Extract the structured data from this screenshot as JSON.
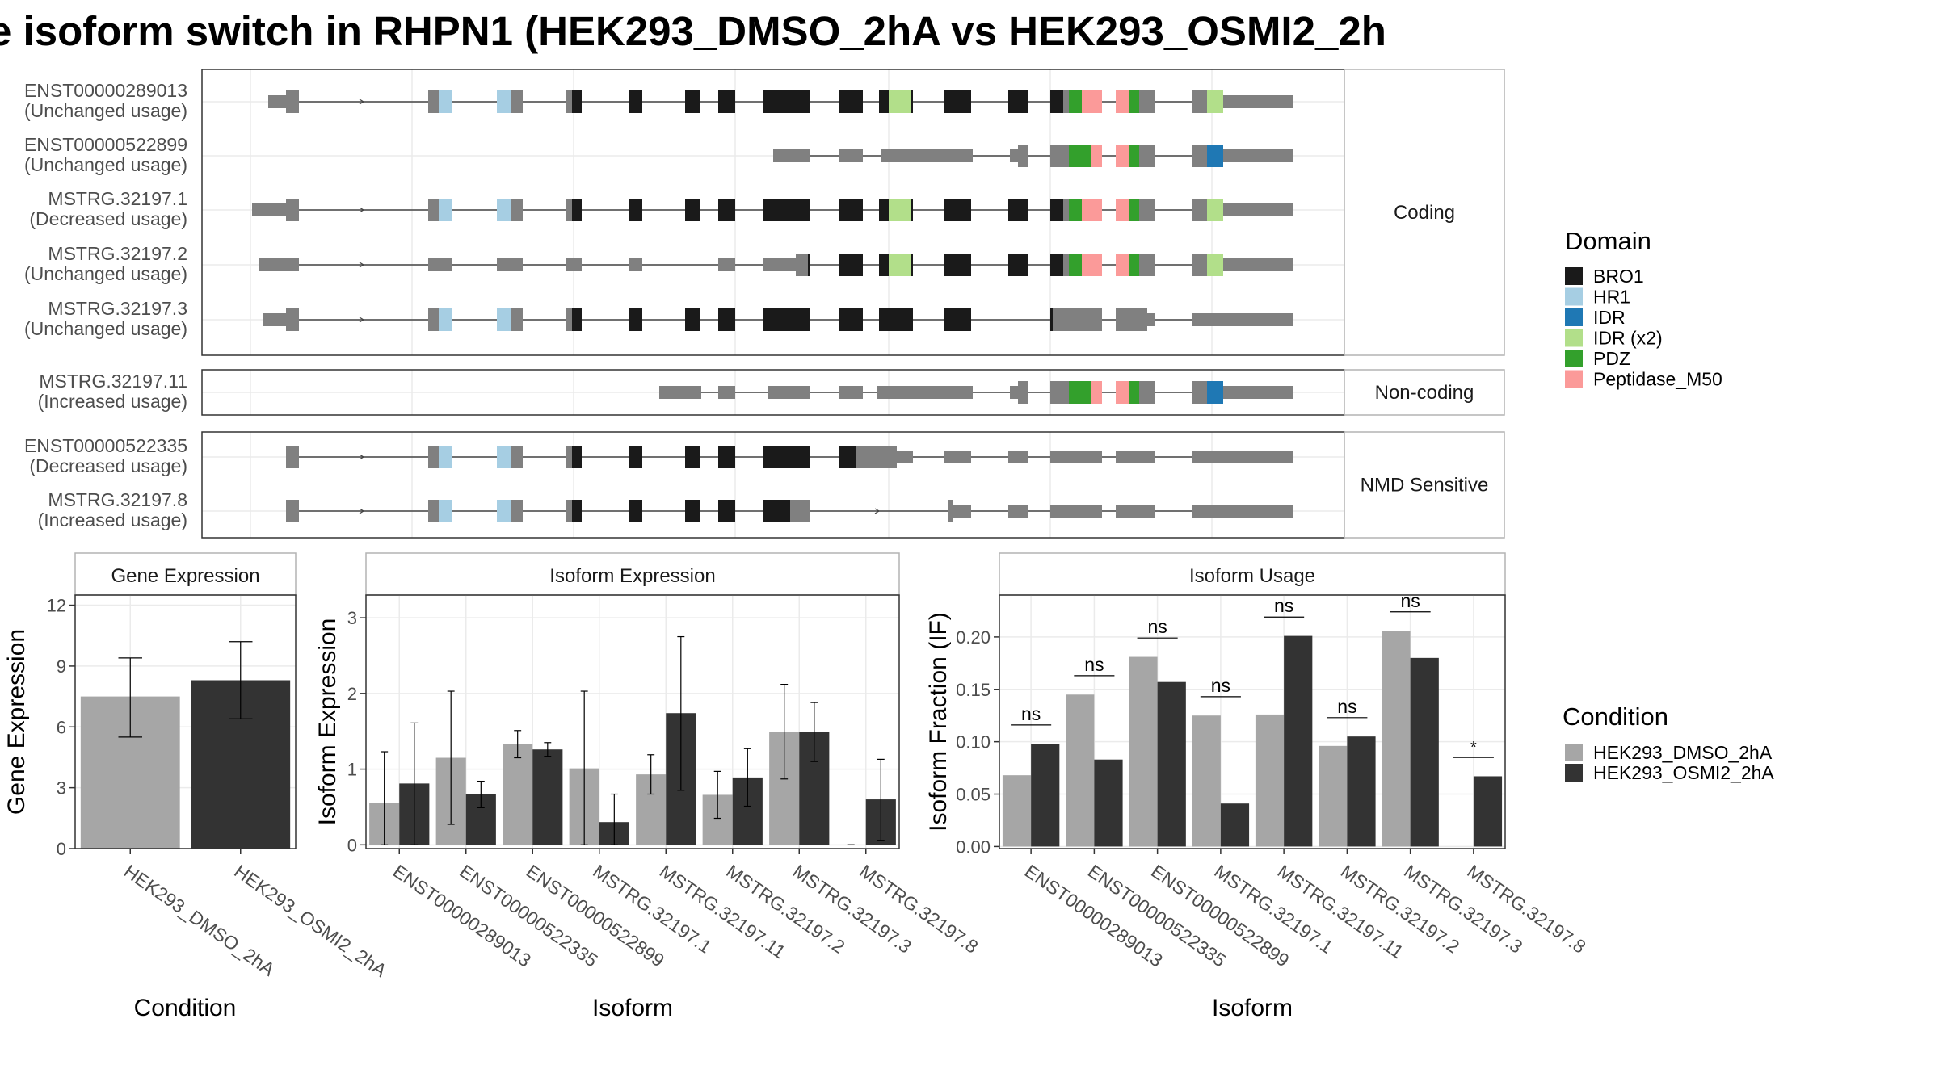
{
  "title": "e isoform switch in RHPN1 (HEK293_DMSO_2hA vs HEK293_OSMI2_2h",
  "colors": {
    "BRO1": "#1a1a1a",
    "HR1": "#a6cee3",
    "IDR": "#1f78b4",
    "IDR (x2)": "#b2df8a",
    "PDZ": "#33a02c",
    "Peptidase_M50": "#fb9a99",
    "exon": "#808080",
    "intron": "#444444",
    "cond1": "#a6a6a6",
    "cond2": "#333333",
    "grid": "#ebebeb",
    "panel_border": "#333333",
    "strip_border": "#b3b3b3"
  },
  "structure": {
    "groups": [
      {
        "label": "Coding",
        "isoforms": [
          {
            "id": "ENST00000289013",
            "usage": "(Unchanged usage)"
          },
          {
            "id": "ENST00000522899",
            "usage": "(Unchanged usage)"
          },
          {
            "id": "MSTRG.32197.1",
            "usage": "(Decreased usage)"
          },
          {
            "id": "MSTRG.32197.2",
            "usage": "(Unchanged usage)"
          },
          {
            "id": "MSTRG.32197.3",
            "usage": "(Unchanged usage)"
          }
        ]
      },
      {
        "label": "Non-coding",
        "isoforms": [
          {
            "id": "MSTRG.32197.11",
            "usage": "(Increased usage)"
          }
        ]
      },
      {
        "label": "NMD Sensitive",
        "isoforms": [
          {
            "id": "ENST00000522335",
            "usage": "(Decreased usage)"
          },
          {
            "id": "MSTRG.32197.8",
            "usage": "(Increased usage)"
          }
        ]
      }
    ]
  },
  "legend_domain": {
    "title": "Domain",
    "items": [
      "BRO1",
      "HR1",
      "IDR",
      "IDR (x2)",
      "PDZ",
      "Peptidase_M50"
    ]
  },
  "legend_condition": {
    "title": "Condition",
    "items": [
      "HEK293_DMSO_2hA",
      "HEK293_OSMI2_2hA"
    ]
  },
  "chart_data": [
    {
      "type": "bar",
      "title": "Gene Expression",
      "xlabel": "Condition",
      "ylabel": "Gene Expression",
      "categories": [
        "HEK293_DMSO_2hA",
        "HEK293_OSMI2_2hA"
      ],
      "values": [
        7.5,
        8.3
      ],
      "errors": [
        [
          5.5,
          9.4
        ],
        [
          6.4,
          10.2
        ]
      ],
      "ylim": [
        0,
        12.5
      ],
      "yticks": [
        "0",
        "3",
        "6",
        "9",
        "12"
      ]
    },
    {
      "type": "bar",
      "title": "Isoform Expression",
      "xlabel": "Isoform",
      "ylabel": "Isoform Expression",
      "categories": [
        "ENST00000289013",
        "ENST00000522335",
        "ENST00000522899",
        "MSTRG.32197.1",
        "MSTRG.32197.11",
        "MSTRG.32197.2",
        "MSTRG.32197.3",
        "MSTRG.32197.8"
      ],
      "series": [
        {
          "name": "HEK293_DMSO_2hA",
          "values": [
            0.55,
            1.15,
            1.33,
            1.01,
            0.93,
            0.66,
            1.49,
            0.0
          ],
          "errors": [
            [
              0.0,
              1.23
            ],
            [
              0.27,
              2.03
            ],
            [
              1.15,
              1.51
            ],
            [
              0.0,
              2.03
            ],
            [
              0.67,
              1.19
            ],
            [
              0.35,
              0.97
            ],
            [
              0.87,
              2.12
            ],
            [
              0.0,
              0.0
            ]
          ]
        },
        {
          "name": "HEK293_OSMI2_2hA",
          "values": [
            0.81,
            0.67,
            1.26,
            0.3,
            1.74,
            0.89,
            1.49,
            0.6
          ],
          "errors": [
            [
              0.0,
              1.61
            ],
            [
              0.49,
              0.84
            ],
            [
              1.17,
              1.35
            ],
            [
              0.0,
              0.67
            ],
            [
              0.72,
              2.75
            ],
            [
              0.51,
              1.27
            ],
            [
              1.1,
              1.88
            ],
            [
              0.06,
              1.13
            ]
          ]
        }
      ],
      "ylim": [
        -0.05,
        3.3
      ],
      "yticks": [
        "0",
        "1",
        "2",
        "3"
      ]
    },
    {
      "type": "bar",
      "title": "Isoform Usage",
      "xlabel": "Isoform",
      "ylabel": "Isoform Fraction (IF)",
      "categories": [
        "ENST00000289013",
        "ENST00000522335",
        "ENST00000522899",
        "MSTRG.32197.1",
        "MSTRG.32197.11",
        "MSTRG.32197.2",
        "MSTRG.32197.3",
        "MSTRG.32197.8"
      ],
      "series": [
        {
          "name": "HEK293_DMSO_2hA",
          "values": [
            0.068,
            0.145,
            0.181,
            0.125,
            0.126,
            0.096,
            0.206,
            0.0
          ]
        },
        {
          "name": "HEK293_OSMI2_2hA",
          "values": [
            0.098,
            0.083,
            0.157,
            0.041,
            0.201,
            0.105,
            0.18,
            0.067
          ]
        }
      ],
      "significance": [
        "ns",
        "ns",
        "ns",
        "ns",
        "ns",
        "ns",
        "ns",
        "*"
      ],
      "ylim": [
        -0.002,
        0.24
      ],
      "yticks": [
        "0.00",
        "0.05",
        "0.10",
        "0.15",
        "0.20"
      ]
    }
  ]
}
